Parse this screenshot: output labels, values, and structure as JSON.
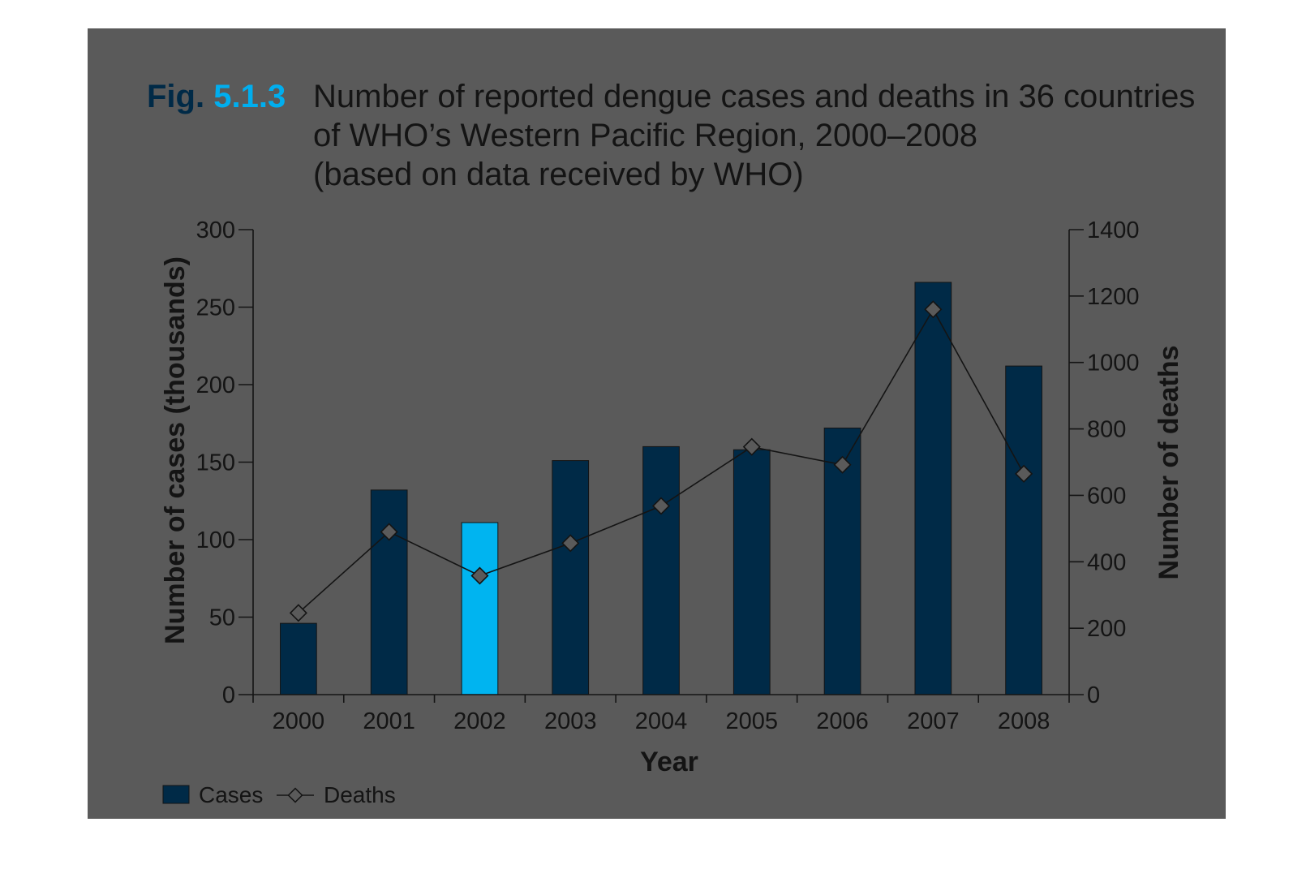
{
  "figure": {
    "label_prefix": "Fig.",
    "label_number": "5.1.3",
    "title_line1": "Number of reported dengue cases and deaths in 36 countries",
    "title_line2": "of WHO’s Western Pacific Region, 2000–2008",
    "title_line3": "(based on data received by WHO)"
  },
  "colors": {
    "panel": "#5a5a5a",
    "bar": "#002a47",
    "bar_highlight": "#00b4f0",
    "label_prefix": "#002a47",
    "label_number": "#00aeef",
    "ink": "#141414",
    "marker_fill": "#5a5a5a"
  },
  "chart_data": {
    "type": "bar",
    "categories": [
      "2000",
      "2001",
      "2002",
      "2003",
      "2004",
      "2005",
      "2006",
      "2007",
      "2008"
    ],
    "series": [
      {
        "name": "Cases",
        "type": "bar",
        "axis": "left",
        "values": [
          46,
          132,
          111,
          151,
          160,
          158,
          172,
          266,
          212
        ]
      },
      {
        "name": "Deaths",
        "type": "line",
        "marker": "diamond",
        "axis": "right",
        "values": [
          246,
          490,
          358,
          456,
          568,
          746,
          692,
          1160,
          665
        ]
      }
    ],
    "xlabel": "Year",
    "ylabel": "Number of cases (thousands)",
    "y2label": "Number of deaths",
    "ylim": [
      0,
      300
    ],
    "y2lim": [
      0,
      1400
    ],
    "yticks": [
      "0",
      "50",
      "100",
      "150",
      "200",
      "250",
      "300"
    ],
    "y2ticks": [
      "0",
      "200",
      "400",
      "600",
      "800",
      "1000",
      "1200",
      "1400"
    ],
    "legend": [
      "Cases",
      "Deaths"
    ],
    "legend_position": "bottom-left",
    "grid": false
  }
}
